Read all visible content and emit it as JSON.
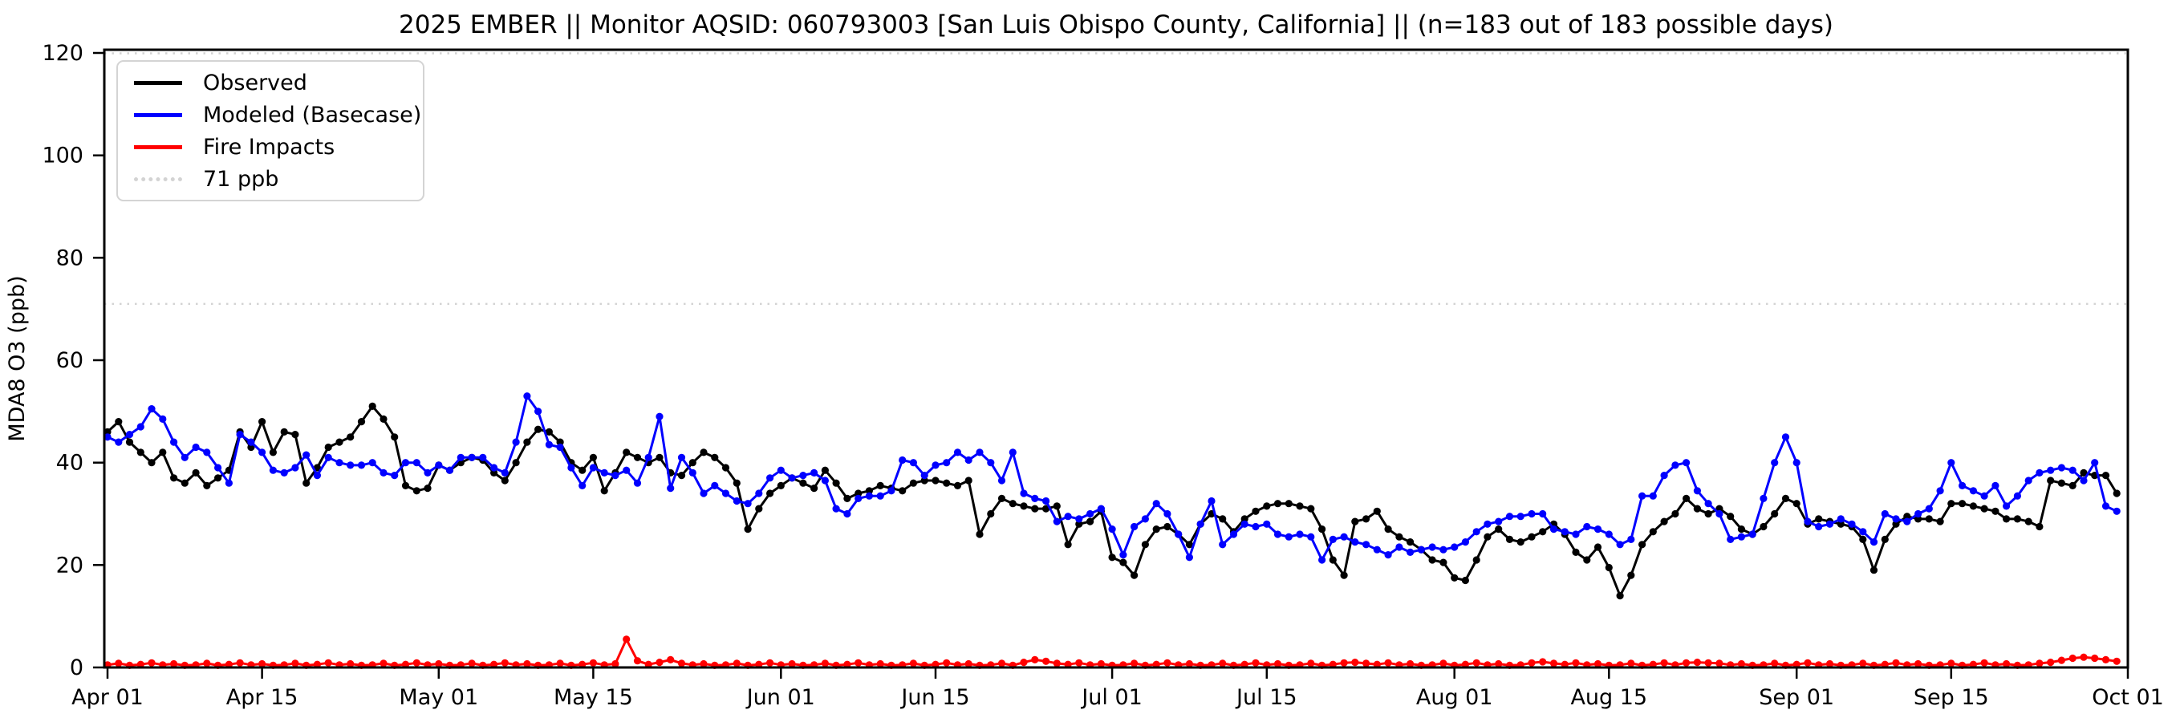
{
  "title": "2025 EMBER || Monitor AQSID: 060793003 [San Luis Obispo County, California] || (n=183 out of 183 possible days)",
  "legend": {
    "items": [
      {
        "label": "Observed",
        "color": "#000000",
        "style": "solid"
      },
      {
        "label": "Modeled (Basecase)",
        "color": "#0000ff",
        "style": "solid"
      },
      {
        "label": "Fire Impacts",
        "color": "#ff0000",
        "style": "solid"
      },
      {
        "label": "71 ppb",
        "color": "#d3d3d3",
        "style": "dotted"
      }
    ]
  },
  "chart_data": {
    "type": "line",
    "title": "2025 EMBER || Monitor AQSID: 060793003 [San Luis Obispo County, California] || (n=183 out of 183 possible days)",
    "xlabel": "",
    "ylabel": "MDA8 O3 (ppb)",
    "ylim": [
      0,
      120
    ],
    "y_ticks": [
      0,
      20,
      40,
      60,
      80,
      100,
      120
    ],
    "x_range_days": 183,
    "x_start_date": "Apr 01",
    "x_end_date": "Oct 01",
    "grid": false,
    "legend_position": "upper left",
    "threshold_color": "#d3d3d3",
    "dotted_lines": [
      {
        "value": 71,
        "label": "71 ppb"
      },
      {
        "value": 120,
        "label": ""
      }
    ],
    "x_ticks": [
      {
        "label": "Apr 01",
        "day": 0
      },
      {
        "label": "Apr 15",
        "day": 14
      },
      {
        "label": "May 01",
        "day": 30
      },
      {
        "label": "May 15",
        "day": 44
      },
      {
        "label": "Jun 01",
        "day": 61
      },
      {
        "label": "Jun 15",
        "day": 75
      },
      {
        "label": "Jul 01",
        "day": 91
      },
      {
        "label": "Jul 15",
        "day": 105
      },
      {
        "label": "Aug 01",
        "day": 122
      },
      {
        "label": "Aug 15",
        "day": 136
      },
      {
        "label": "Sep 01",
        "day": 153
      },
      {
        "label": "Sep 15",
        "day": 167
      },
      {
        "label": "Oct 01",
        "day": 183
      }
    ],
    "series": [
      {
        "name": "Observed",
        "color": "#000000",
        "marker": "circle",
        "values": [
          46,
          48,
          44,
          42,
          40,
          42,
          37,
          36,
          38,
          35.5,
          37,
          38.5,
          46,
          43,
          48,
          42,
          46,
          45.5,
          36,
          39,
          43,
          44,
          45,
          48,
          51,
          48.5,
          45,
          35.5,
          34.5,
          35,
          39.5,
          38.5,
          40,
          41,
          40.5,
          38,
          36.5,
          40,
          44,
          46.5,
          46,
          44,
          40,
          38.5,
          41,
          34.5,
          38,
          42,
          41,
          40,
          41,
          38,
          37.5,
          40,
          42,
          41,
          39,
          36,
          27,
          31,
          34,
          35.5,
          37,
          36,
          35,
          38.5,
          36,
          33,
          34,
          34.5,
          35.5,
          35,
          34.5,
          36,
          36.5,
          36.5,
          36,
          35.5,
          36.5,
          26,
          30,
          33,
          32,
          31.5,
          31,
          31,
          31.5,
          24,
          28,
          28.5,
          30.5,
          21.5,
          20.5,
          18,
          24,
          27,
          27.5,
          26,
          24,
          28,
          30,
          29,
          26.5,
          29,
          30.5,
          31.5,
          32,
          32,
          31.5,
          31,
          27,
          21,
          18,
          28.5,
          29,
          30.5,
          27,
          25.5,
          24.5,
          23,
          21,
          20.5,
          17.5,
          17,
          21,
          25.5,
          27,
          25,
          24.5,
          25.5,
          26.5,
          28,
          26,
          22.5,
          21,
          23.5,
          19.5,
          14,
          18,
          24,
          26.5,
          28.5,
          30,
          33,
          31,
          30,
          31,
          29.5,
          27,
          26,
          27.5,
          30,
          33,
          32,
          28,
          29,
          28.5,
          28,
          27.5,
          25,
          19,
          25,
          28,
          29.5,
          29,
          29,
          28.5,
          32,
          32,
          31.5,
          31,
          30.5,
          29,
          29,
          28.5,
          27.5,
          36.5,
          36,
          35.5,
          38,
          37.5,
          37.5,
          34
        ]
      },
      {
        "name": "Modeled (Basecase)",
        "color": "#0000ff",
        "marker": "circle",
        "values": [
          45,
          44,
          45.5,
          47,
          50.5,
          48.5,
          44,
          41,
          43,
          42,
          39,
          36,
          45.5,
          44,
          42,
          38.5,
          38,
          39,
          41.5,
          37.5,
          41,
          40,
          39.5,
          39.5,
          40,
          38,
          37.5,
          40,
          40,
          38,
          39.5,
          38.5,
          41,
          41,
          41,
          39,
          38,
          44,
          53,
          50,
          43.5,
          43,
          39,
          35.5,
          39,
          38,
          37.5,
          38.5,
          36,
          41,
          49,
          35,
          41,
          38,
          34,
          35.5,
          34,
          32.5,
          32,
          34,
          37,
          38.5,
          37,
          37.5,
          38,
          36.5,
          31,
          30,
          33,
          33.5,
          33.5,
          34.5,
          40.5,
          40,
          37.5,
          39.5,
          40,
          42,
          40.5,
          42,
          40,
          36.5,
          42,
          34,
          33,
          32.5,
          28.5,
          29.5,
          29,
          30,
          31,
          27,
          22,
          27.5,
          29,
          32,
          30,
          26,
          21.5,
          28,
          32.5,
          24,
          26,
          28,
          27.5,
          28,
          26,
          25.5,
          26,
          25.5,
          21,
          25,
          25.5,
          24.5,
          24,
          23,
          22,
          23.5,
          22.5,
          23,
          23.5,
          23,
          23.5,
          24.5,
          26.5,
          28,
          28.5,
          29.5,
          29.5,
          30,
          30,
          27,
          26.5,
          26,
          27.5,
          27,
          26,
          24,
          25,
          33.5,
          33.5,
          37.5,
          39.5,
          40,
          34.5,
          32,
          30,
          25,
          25.5,
          26,
          33,
          40,
          45,
          40,
          28.5,
          27.5,
          28,
          29,
          28,
          26.5,
          24.5,
          30,
          29,
          28.5,
          30,
          31,
          34.5,
          40,
          35.5,
          34.5,
          33.5,
          35.5,
          31.5,
          33.5,
          36.5,
          38,
          38.5,
          39,
          38.5,
          36.5,
          40,
          31.5,
          30.5
        ]
      },
      {
        "name": "Fire Impacts",
        "color": "#ff0000",
        "marker": "circle",
        "values": [
          0.5,
          0.8,
          0.4,
          0.6,
          0.9,
          0.5,
          0.7,
          0.4,
          0.5,
          0.8,
          0.4,
          0.6,
          0.9,
          0.5,
          0.7,
          0.4,
          0.5,
          0.8,
          0.4,
          0.6,
          0.9,
          0.5,
          0.7,
          0.4,
          0.5,
          0.8,
          0.4,
          0.6,
          0.9,
          0.5,
          0.7,
          0.4,
          0.5,
          0.8,
          0.4,
          0.6,
          0.9,
          0.5,
          0.7,
          0.4,
          0.5,
          0.8,
          0.4,
          0.6,
          0.9,
          0.5,
          0.7,
          5.5,
          1.3,
          0.6,
          1.0,
          1.5,
          0.8,
          0.5,
          0.7,
          0.4,
          0.5,
          0.8,
          0.4,
          0.6,
          0.9,
          0.5,
          0.7,
          0.4,
          0.5,
          0.8,
          0.4,
          0.6,
          0.9,
          0.5,
          0.7,
          0.4,
          0.5,
          0.8,
          0.4,
          0.6,
          0.9,
          0.5,
          0.7,
          0.4,
          0.5,
          0.8,
          0.4,
          1.0,
          1.5,
          1.2,
          0.8,
          0.6,
          0.9,
          0.5,
          0.7,
          0.4,
          0.5,
          0.8,
          0.4,
          0.6,
          0.9,
          0.5,
          0.7,
          0.4,
          0.5,
          0.8,
          0.4,
          0.6,
          0.9,
          0.5,
          0.7,
          0.4,
          0.5,
          0.8,
          0.4,
          0.6,
          0.9,
          1.0,
          0.8,
          0.6,
          0.9,
          0.5,
          0.7,
          0.4,
          0.5,
          0.8,
          0.4,
          0.6,
          0.9,
          0.5,
          0.7,
          0.4,
          0.5,
          0.9,
          1.1,
          0.8,
          0.6,
          0.9,
          0.5,
          0.7,
          0.4,
          0.5,
          0.8,
          0.4,
          0.6,
          0.9,
          0.5,
          0.9,
          1.0,
          0.9,
          0.8,
          0.5,
          0.7,
          0.4,
          0.5,
          0.8,
          0.4,
          0.6,
          0.9,
          0.5,
          0.7,
          0.4,
          0.5,
          0.8,
          0.4,
          0.6,
          0.9,
          0.5,
          0.7,
          0.4,
          0.5,
          0.8,
          0.4,
          0.6,
          0.9,
          0.5,
          0.7,
          0.4,
          0.5,
          0.8,
          1.0,
          1.4,
          1.8,
          2.0,
          1.8,
          1.5,
          1.2
        ]
      }
    ]
  }
}
